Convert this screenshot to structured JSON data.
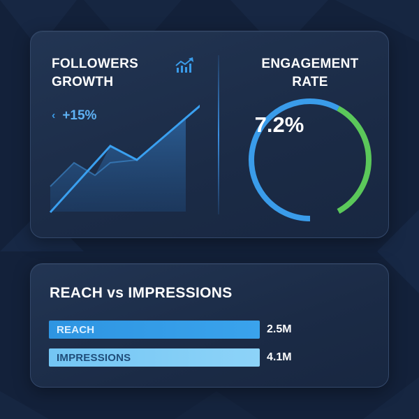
{
  "followers": {
    "title_line1": "FOLLOWERS",
    "title_line2": "GROWTH",
    "icon": "growth-chart-icon",
    "trend_icon": "chevron-left-icon",
    "trend_glyph": "‹",
    "trend_value": "+15%"
  },
  "engagement": {
    "title_line1": "ENGAGEMENT",
    "title_line2": "RATE",
    "value": "7.2%",
    "gauge_fraction": 0.72
  },
  "reach_impressions": {
    "title": "REACH vs IMPRESSIONS",
    "bars": [
      {
        "label": "REACH",
        "value": "2.5M",
        "amount": 2.5
      },
      {
        "label": "IMPRESSIONS",
        "value": "4.1M",
        "amount": 4.1
      }
    ],
    "max_amount": 4.1
  },
  "colors": {
    "background": "#13213a",
    "card": "#1f3150",
    "accent_blue": "#3a9cea",
    "light_blue": "#84cdf6",
    "green": "#5bc85a"
  }
}
